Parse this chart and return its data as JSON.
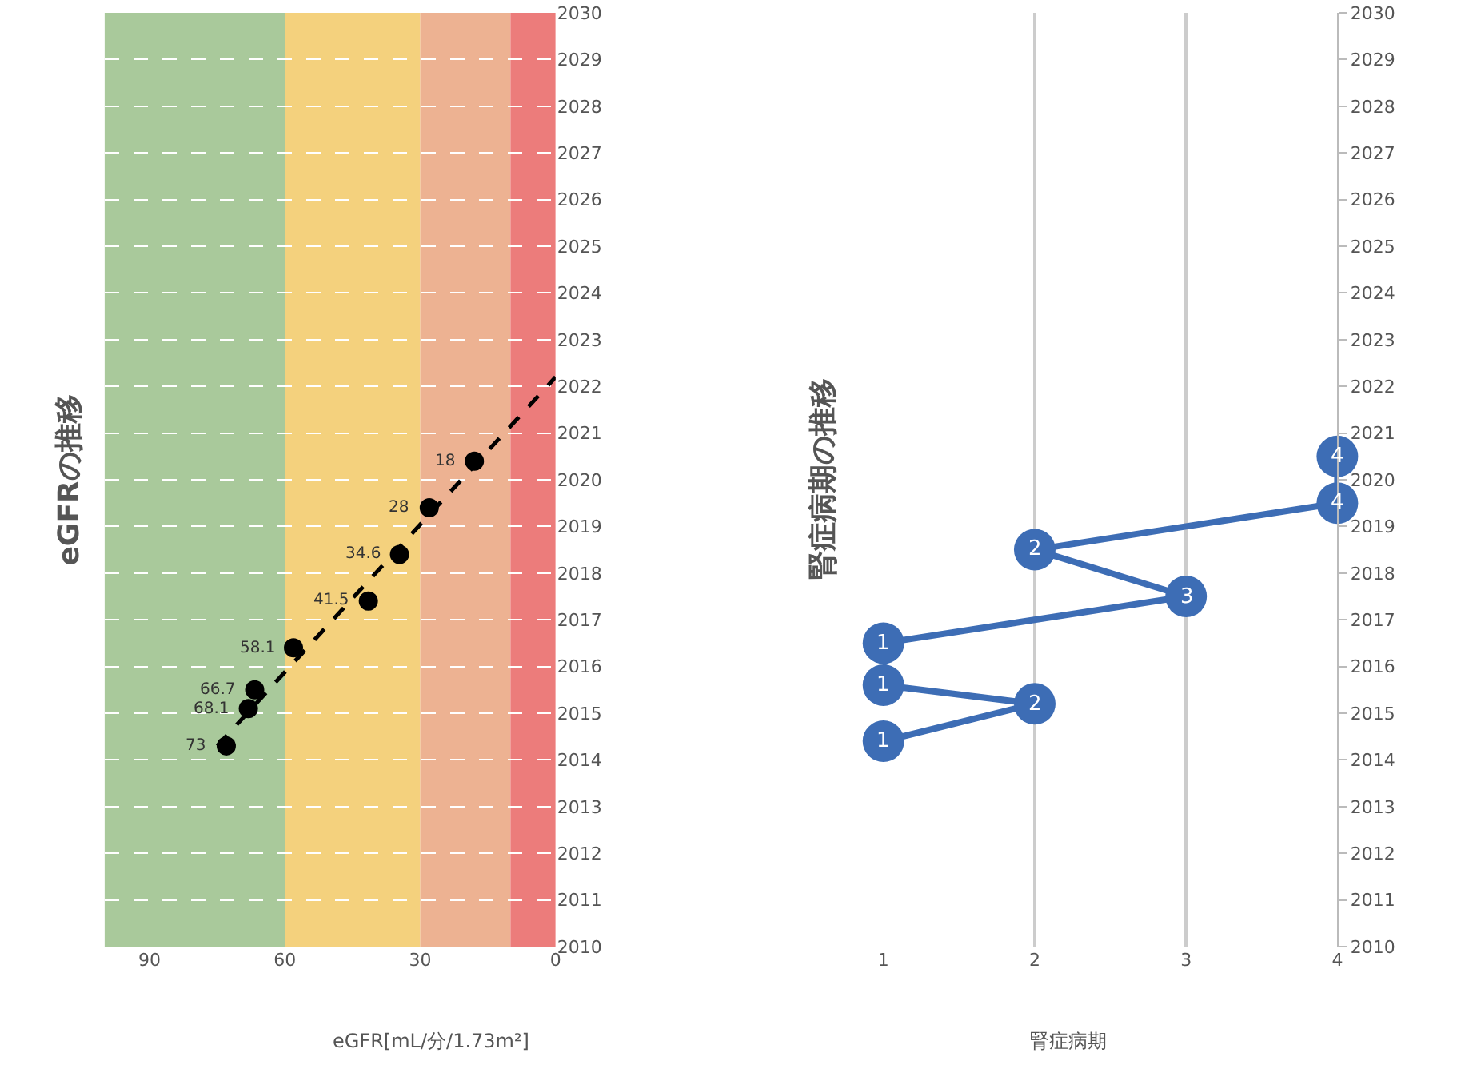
{
  "chart_data": [
    {
      "type": "scatter",
      "orientation": "horizontal",
      "title": "eGFRの推移",
      "xlabel": "eGFR[mL/分/1.73m²]",
      "series": [
        {
          "color": "#000000",
          "marker": "circle",
          "x": [
            2014.3,
            2015.1,
            2015.5,
            2016.4,
            2017.4,
            2018.4,
            2019.4,
            2020.4
          ],
          "values": [
            73,
            68.1,
            66.7,
            58.1,
            41.5,
            34.6,
            28,
            18
          ],
          "value_labels": [
            "73",
            "68.1",
            "66.7",
            "58.1",
            "41.5",
            "34.6",
            "28",
            "18"
          ]
        },
        {
          "type": "line",
          "color": "#000000",
          "line_style": "dashed",
          "marker": "none",
          "x": [
            2014.3,
            2022.2
          ],
          "values": [
            75,
            0
          ]
        }
      ],
      "bands": [
        {
          "axis": "x",
          "from": 60,
          "to": 100,
          "color": "#a9c99b"
        },
        {
          "axis": "x",
          "from": 30,
          "to": 60,
          "color": "#f4d17d"
        },
        {
          "axis": "x",
          "from": 10,
          "to": 30,
          "color": "#edb292"
        },
        {
          "axis": "x",
          "from": 0,
          "to": 10,
          "color": "#ec7c7b"
        }
      ],
      "grid": "y",
      "xlim": [
        100,
        0
      ],
      "xticks": [
        0,
        30,
        60,
        90
      ],
      "ylim": [
        2010,
        2030
      ],
      "yticks": [
        2010,
        2011,
        2012,
        2013,
        2014,
        2015,
        2016,
        2017,
        2018,
        2019,
        2020,
        2021,
        2022,
        2023,
        2024,
        2025,
        2026,
        2027,
        2028,
        2029,
        2030
      ]
    },
    {
      "type": "line",
      "orientation": "horizontal",
      "title": "腎症病期の推移",
      "xlabel": "腎症病期",
      "series": [
        {
          "color": "#3d6db5",
          "x": [
            2014.4,
            2015.2,
            2015.6,
            2016.5,
            2017.5,
            2018.5,
            2019.5,
            2020.5
          ],
          "values": [
            1,
            2,
            1,
            1,
            3,
            2,
            4,
            4
          ]
        }
      ],
      "marker": "circle",
      "data_labels": true,
      "grid": "x",
      "xlim": [
        1,
        4
      ],
      "xticks": [
        1,
        2,
        3,
        4
      ],
      "ylim": [
        2010,
        2030
      ],
      "yticks": [
        2010,
        2011,
        2012,
        2013,
        2014,
        2015,
        2016,
        2017,
        2018,
        2019,
        2020,
        2021,
        2022,
        2023,
        2024,
        2025,
        2026,
        2027,
        2028,
        2029,
        2030
      ]
    }
  ]
}
